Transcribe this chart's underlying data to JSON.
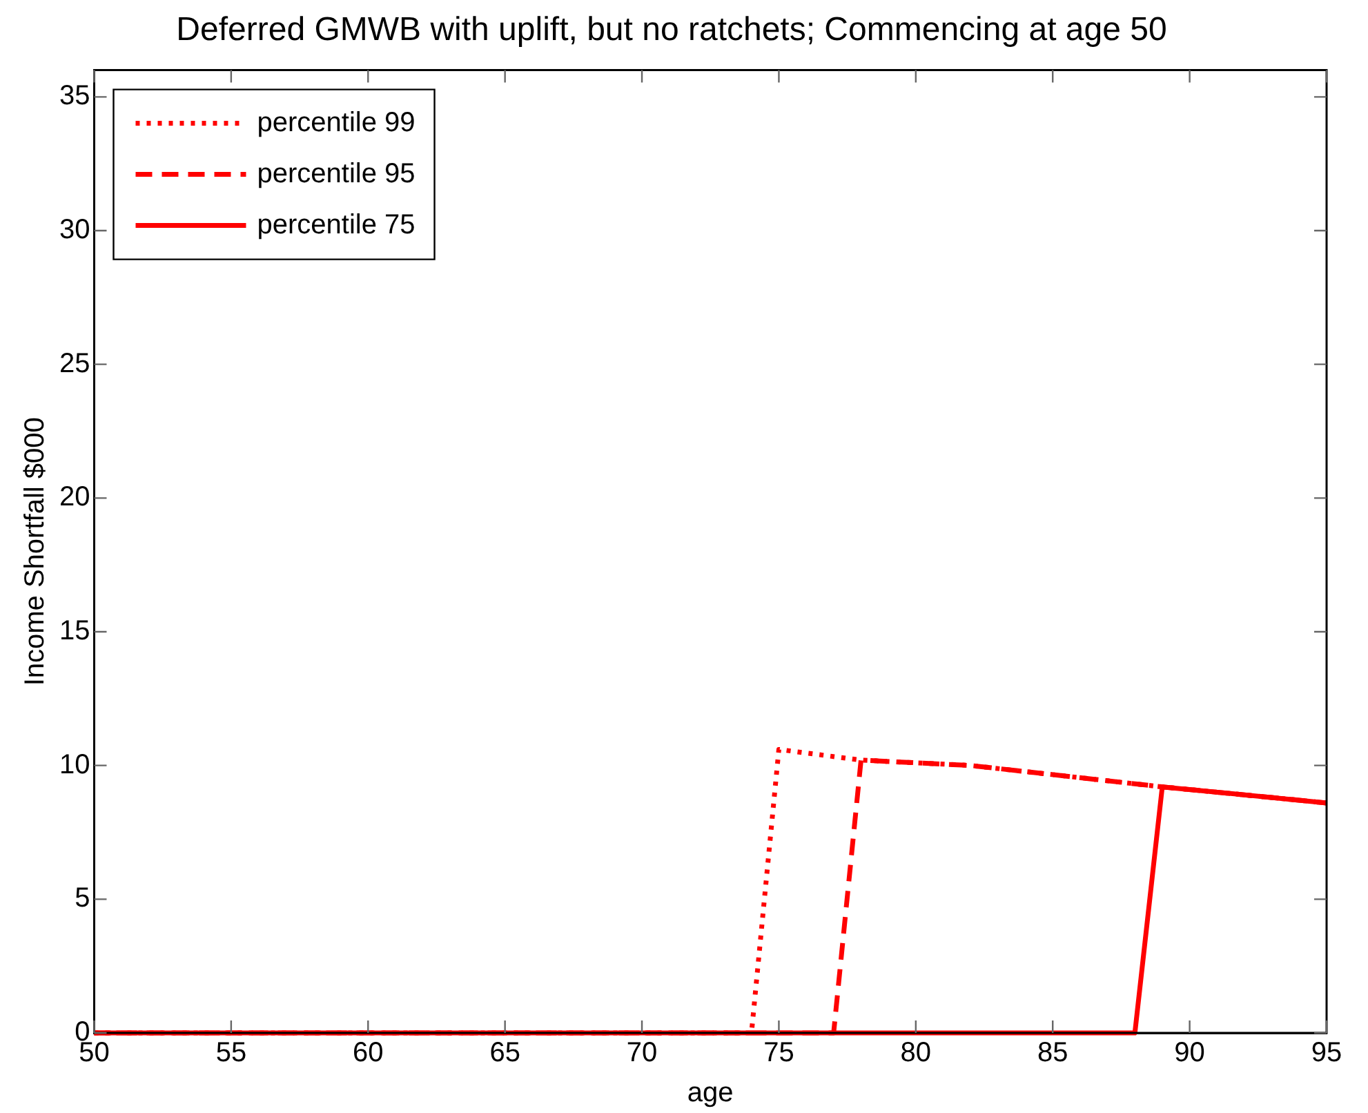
{
  "chart_data": {
    "type": "line",
    "title": "Deferred GMWB with uplift, but no ratchets; Commencing at age 50",
    "xlabel": "age",
    "ylabel": "Income Shortfall $000",
    "xlim": [
      50,
      95
    ],
    "xticks": [
      50,
      55,
      60,
      65,
      70,
      75,
      80,
      85,
      90,
      95
    ],
    "ylim": [
      0,
      36
    ],
    "yticks": [
      0,
      5,
      10,
      15,
      20,
      25,
      30,
      35
    ],
    "grid": false,
    "legend": "top left",
    "marker": "none",
    "series": [
      {
        "name": "percentile 99",
        "color": "#ff0000",
        "line_style": "dotted",
        "x": [
          50,
          74,
          75,
          78,
          82,
          89,
          95
        ],
        "values": [
          0,
          0,
          10.6,
          10.2,
          10.0,
          9.2,
          8.6
        ]
      },
      {
        "name": "percentile 95",
        "color": "#ff0000",
        "line_style": "dashed",
        "x": [
          50,
          77,
          78,
          82,
          89,
          95
        ],
        "values": [
          0,
          0,
          10.2,
          10.0,
          9.2,
          8.6
        ]
      },
      {
        "name": "percentile 75",
        "color": "#ff0000",
        "line_style": "solid",
        "x": [
          50,
          88,
          89,
          95
        ],
        "values": [
          0,
          0,
          9.2,
          8.6
        ]
      }
    ]
  }
}
